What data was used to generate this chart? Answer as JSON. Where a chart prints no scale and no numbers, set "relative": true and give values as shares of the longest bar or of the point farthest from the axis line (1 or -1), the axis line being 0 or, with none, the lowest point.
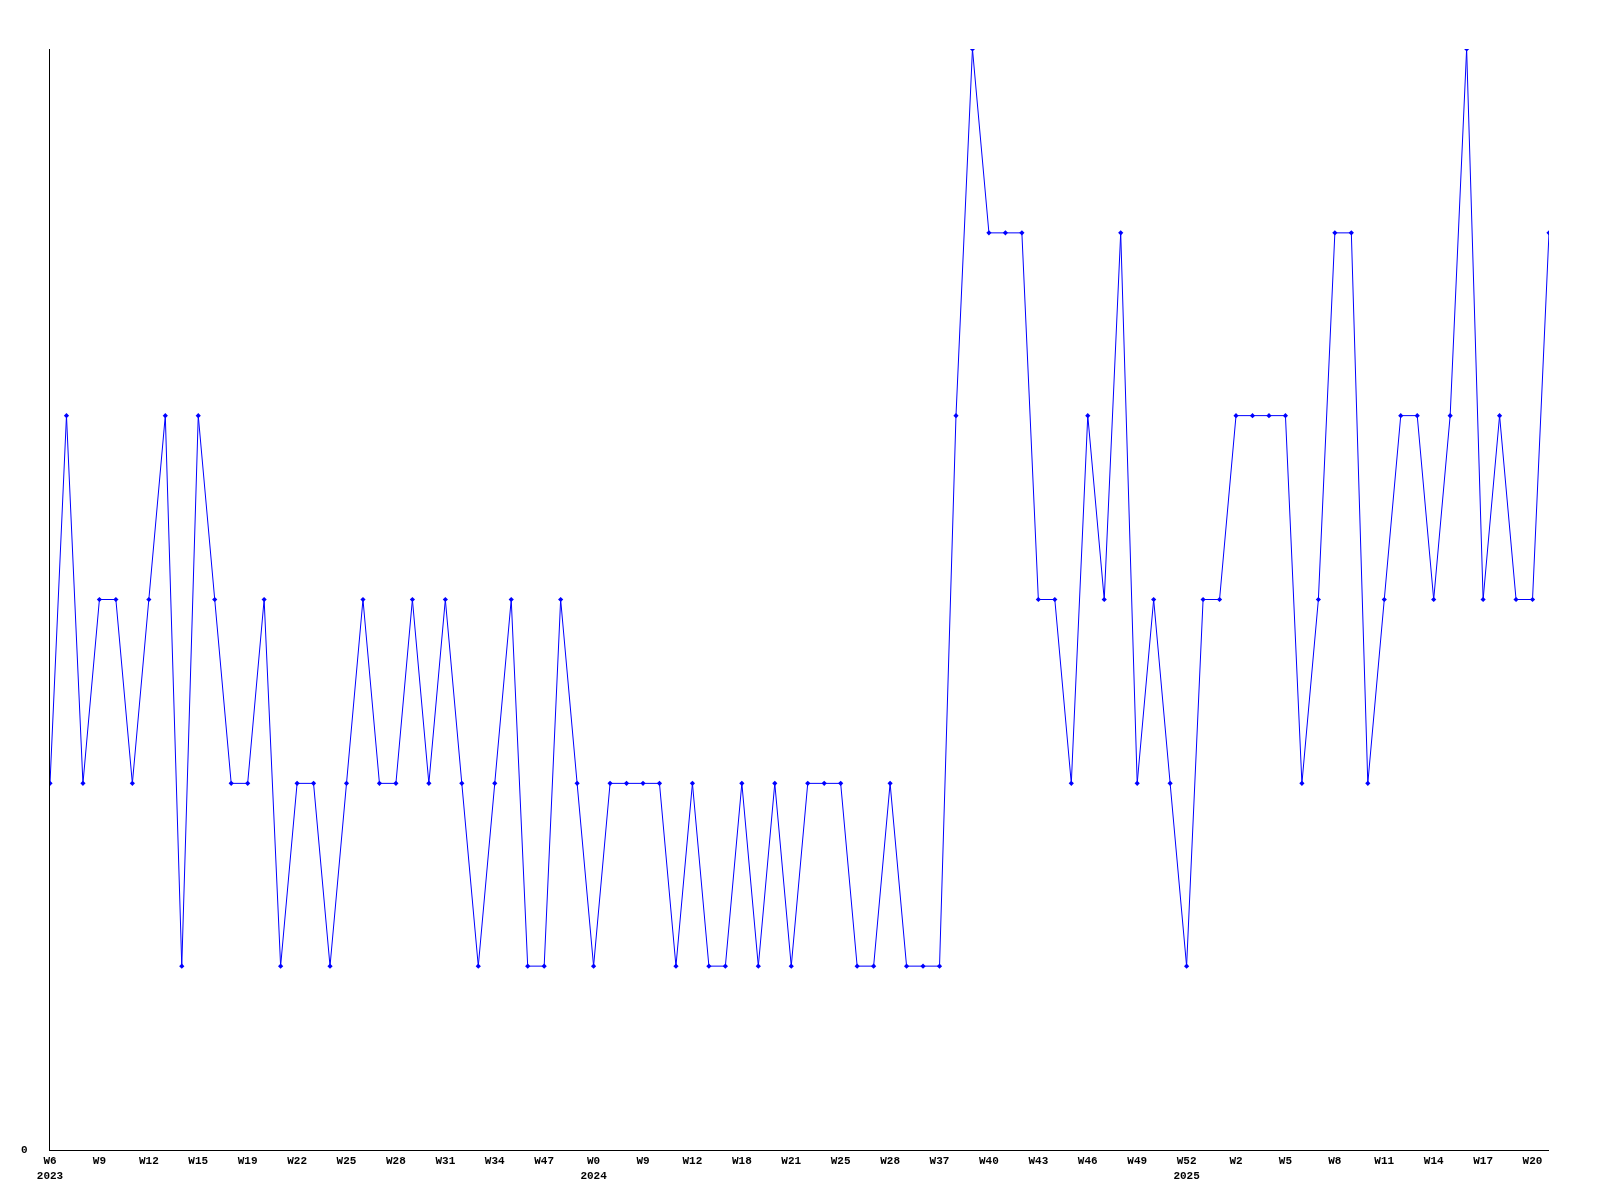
{
  "chart_data": {
    "type": "line",
    "relative": true,
    "marker": "diamond",
    "annotations": [
      "0"
    ],
    "categories": [
      "W6\n2023",
      null,
      null,
      "W9",
      null,
      null,
      "W12",
      null,
      null,
      "W15",
      null,
      null,
      "W19",
      null,
      null,
      "W22",
      null,
      null,
      "W25",
      null,
      null,
      "W28",
      null,
      null,
      "W31",
      null,
      null,
      "W34",
      null,
      null,
      "W47",
      null,
      null,
      "W0\n2024",
      null,
      null,
      "W9",
      null,
      null,
      "W12",
      null,
      null,
      "W18",
      null,
      null,
      "W21",
      null,
      null,
      "W25",
      null,
      null,
      "W28",
      null,
      null,
      "W37",
      null,
      null,
      "W40",
      null,
      null,
      "W43",
      null,
      null,
      "W46",
      null,
      null,
      "W49",
      null,
      null,
      "W52\n2025",
      null,
      null,
      "W2",
      null,
      null,
      "W5",
      null,
      null,
      "W8",
      null,
      null,
      "W11",
      null,
      null,
      "W14",
      null,
      null,
      "W17",
      null,
      null,
      "W20",
      null
    ],
    "series": [
      {
        "color": "#0000ff",
        "values": [
          0.333,
          0.667,
          0.333,
          0.5,
          0.5,
          0.333,
          0.5,
          0.667,
          0.167,
          0.667,
          0.5,
          0.333,
          0.333,
          0.5,
          0.167,
          0.333,
          0.333,
          0.167,
          0.333,
          0.5,
          0.333,
          0.333,
          0.5,
          0.333,
          0.5,
          0.333,
          0.167,
          0.333,
          0.5,
          0.167,
          0.167,
          0.5,
          0.333,
          0.167,
          0.333,
          0.333,
          0.333,
          0.333,
          0.167,
          0.333,
          0.167,
          0.167,
          0.333,
          0.167,
          0.333,
          0.167,
          0.333,
          0.333,
          0.333,
          0.167,
          0.167,
          0.333,
          0.167,
          0.167,
          0.167,
          0.667,
          1,
          0.833,
          0.833,
          0.833,
          0.5,
          0.5,
          0.333,
          0.667,
          0.5,
          0.833,
          0.333,
          0.5,
          0.333,
          0.167,
          0.5,
          0.5,
          0.667,
          0.667,
          0.667,
          0.667,
          0.333,
          0.5,
          0.833,
          0.833,
          0.333,
          0.5,
          0.667,
          0.667,
          0.5,
          0.667,
          1,
          0.5,
          0.667,
          0.5,
          0.5,
          0.833
        ]
      }
    ]
  }
}
